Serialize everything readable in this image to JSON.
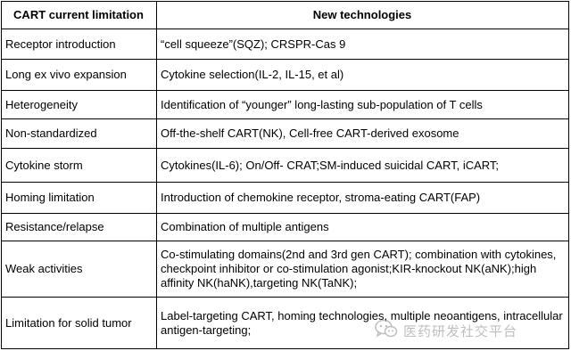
{
  "table": {
    "headers": {
      "col1": "CART current limitation",
      "col2": "New technologies"
    },
    "rows": [
      {
        "limitation": "Receptor introduction",
        "technologies": "“cell squeeze”(SQZ); CRSPR-Cas 9"
      },
      {
        "limitation": "Long ex vivo expansion",
        "technologies": "Cytokine selection(IL-2, IL-15, et al)"
      },
      {
        "limitation": "Heterogeneity",
        "technologies": "Identification of “younger” long-lasting sub-population of T cells"
      },
      {
        "limitation": "Non-standardized",
        "technologies": "Off-the-shelf CART(NK), Cell-free CART-derived exosome"
      },
      {
        "limitation": "Cytokine storm",
        "technologies": "Cytokines(IL-6); On/Off- CRAT;SM-induced suicidal CART, iCART;"
      },
      {
        "limitation": "Homing limitation",
        "technologies": "Introduction of chemokine receptor,  stroma-eating CART(FAP)"
      },
      {
        "limitation": "Resistance/relapse",
        "technologies": "Combination of multiple antigens"
      },
      {
        "limitation": "Weak activities",
        "technologies": "Co-stimulating domains(2nd and 3rd gen CART); combination with cytokines, checkpoint inhibitor or co-stimulation agonist;KIR-knockout NK(aNK);high affinity NK(haNK),targeting NK(TaNK);"
      },
      {
        "limitation": "Limitation for solid tumor",
        "technologies": "Label-targeting CART, homing technologies, multiple neoantigens, intracellular antigen-targeting;"
      }
    ]
  },
  "watermark": {
    "icon": "wechat-icon",
    "text": "医药研发社交平台"
  }
}
